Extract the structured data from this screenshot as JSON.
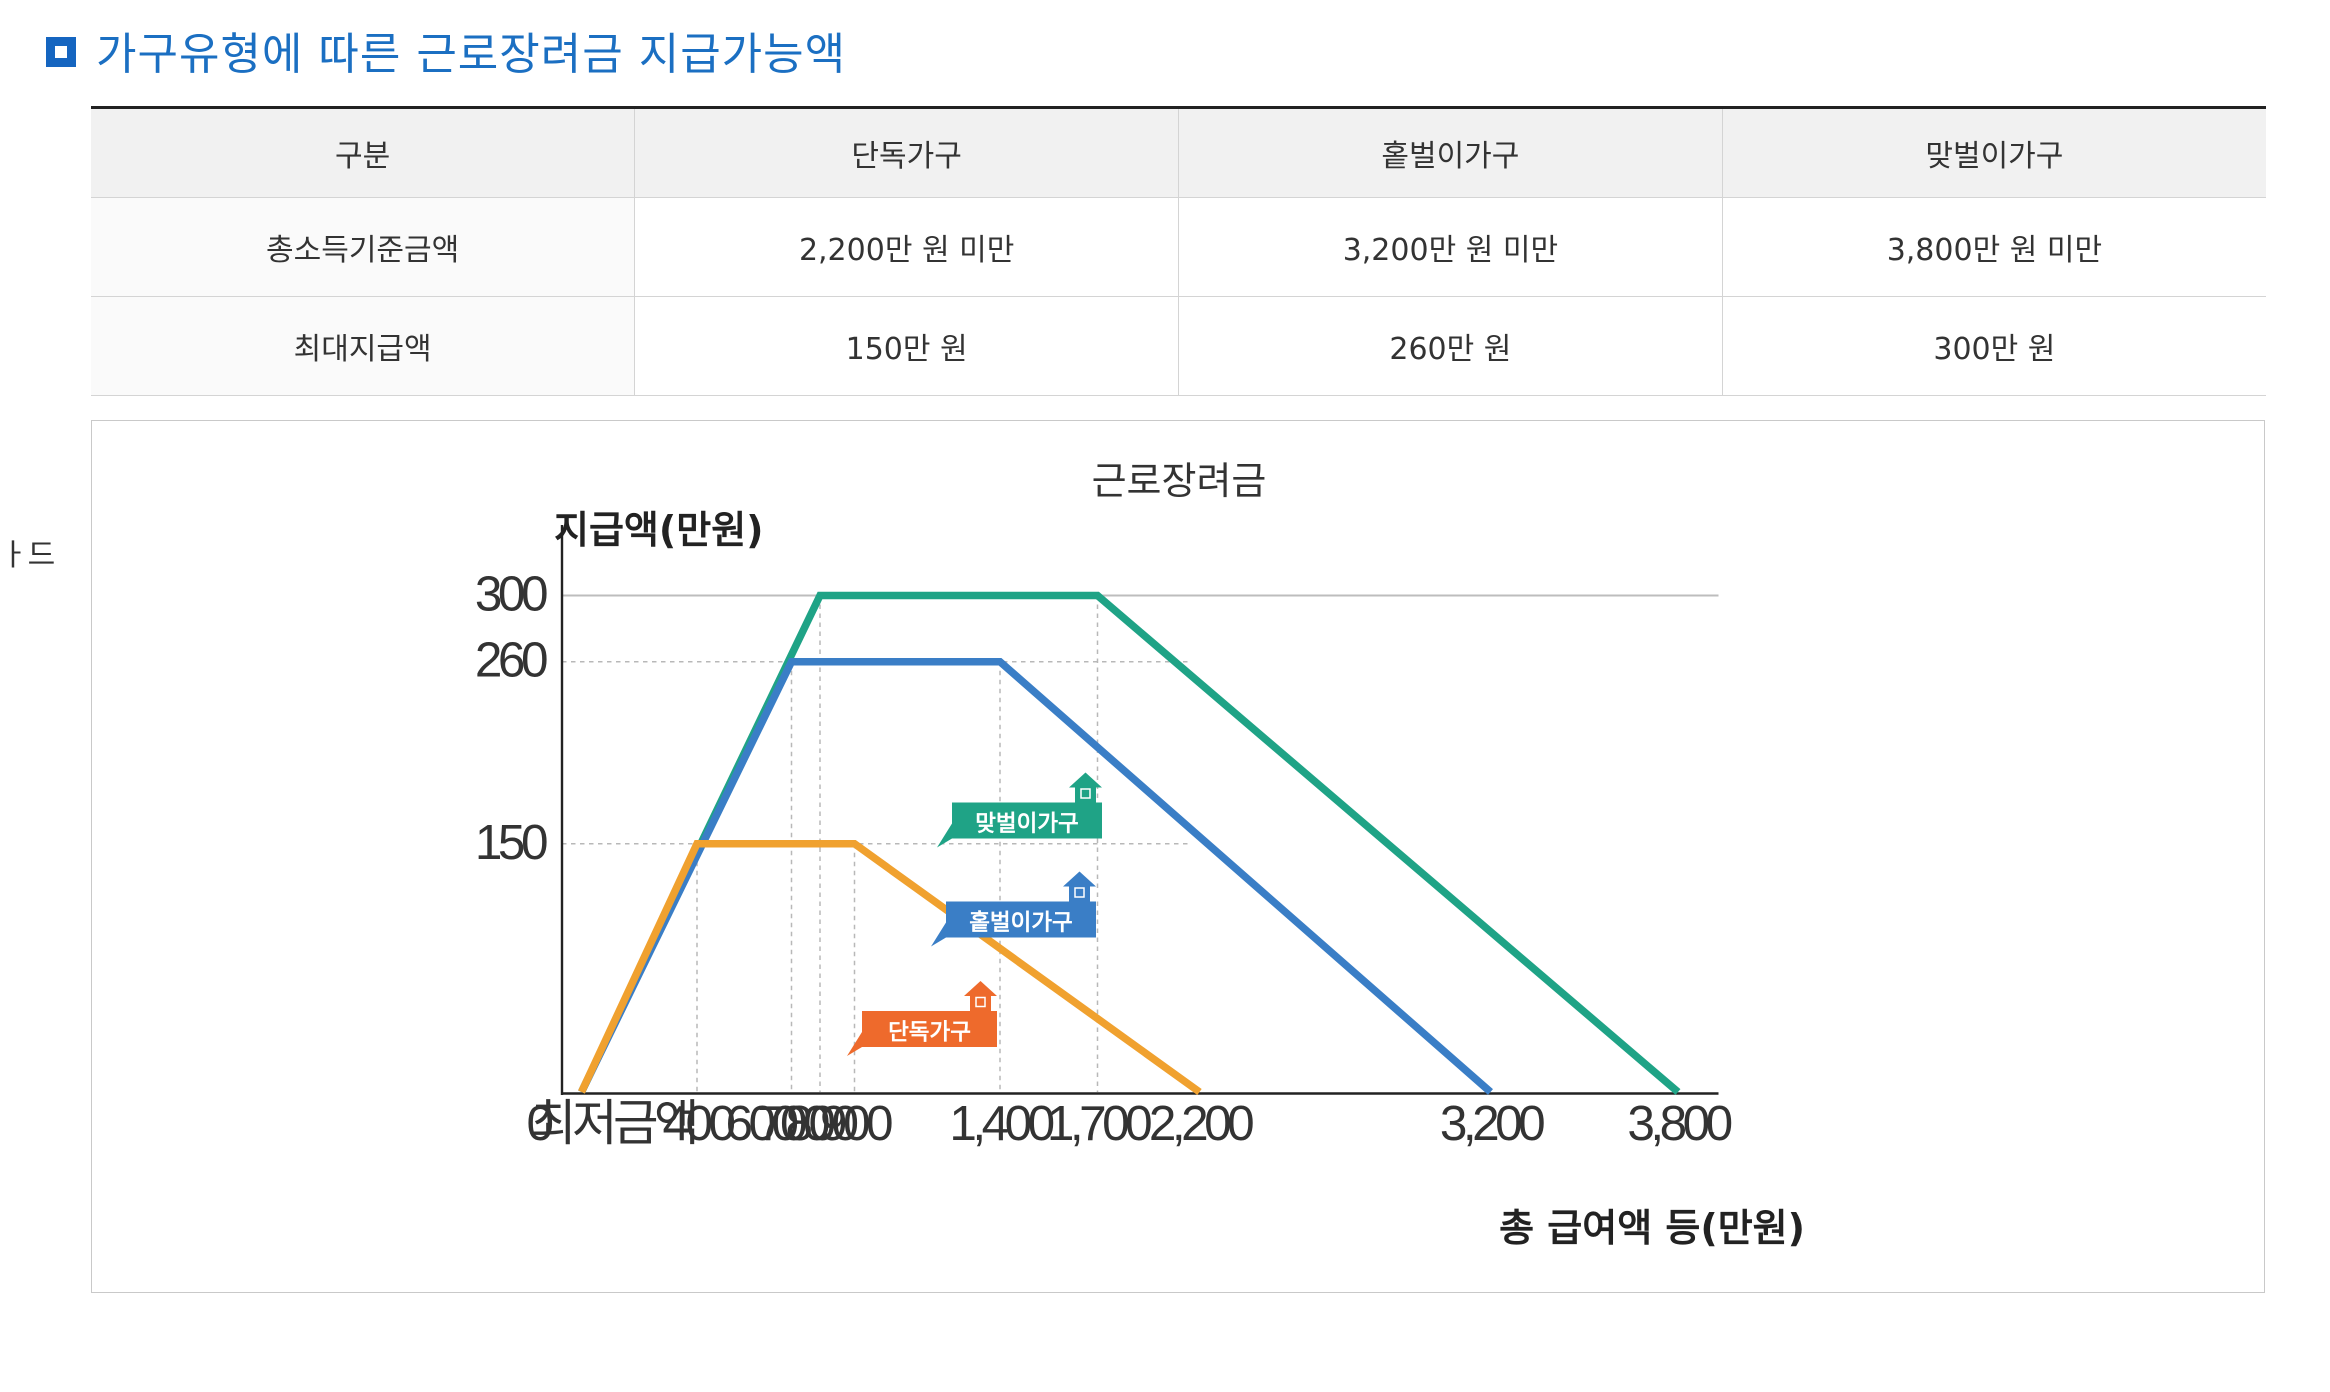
{
  "heading": {
    "title": "가구유형에 따른 근로장려금 지급가능액"
  },
  "table": {
    "headers": [
      "구분",
      "단독가구",
      "홑벌이가구",
      "맞벌이가구"
    ],
    "rows": [
      [
        "총소득기준금액",
        "2,200만 원 미만",
        "3,200만 원 미만",
        "3,800만 원 미만"
      ],
      [
        "최대지급액",
        "150만 원",
        "260만 원",
        "300만 원"
      ]
    ]
  },
  "side_text": "ㅏ드",
  "chart_data": {
    "type": "line",
    "title": "근로장려금",
    "ylabel": "지급액(만원)",
    "xlabel": "총 급여액 등(만원)",
    "origin_label": "0",
    "x_categories": [
      "최저금액",
      "400",
      "600",
      "700",
      "800",
      "900",
      "1,400",
      "1,700",
      "2,200",
      "3,200",
      "3,800"
    ],
    "y_ticks": [
      "300",
      "260",
      "150"
    ],
    "ylim": [
      0,
      300
    ],
    "grid": "dashed reference lines at breakpoints",
    "series": [
      {
        "name": "맞벌이가구",
        "color": "#1fa386",
        "points": [
          [
            "최저금액",
            0
          ],
          [
            "800",
            300
          ],
          [
            "1,700",
            300
          ],
          [
            "3,800",
            0
          ]
        ]
      },
      {
        "name": "홑벌이가구",
        "color": "#3a7ec6",
        "points": [
          [
            "최저금액",
            0
          ],
          [
            "700",
            260
          ],
          [
            "1,400",
            260
          ],
          [
            "3,200",
            0
          ]
        ]
      },
      {
        "name": "단독가구",
        "color": "#f0a12f",
        "points": [
          [
            "최저금액",
            0
          ],
          [
            "400",
            150
          ],
          [
            "900",
            150
          ],
          [
            "2,200",
            0
          ]
        ]
      }
    ],
    "labels": [
      {
        "name": "맞벌이가구",
        "bg": "#1fa386"
      },
      {
        "name": "홑벌이가구",
        "bg": "#3a7ec6"
      },
      {
        "name": "단독가구",
        "bg": "#ee6a2c"
      }
    ]
  }
}
